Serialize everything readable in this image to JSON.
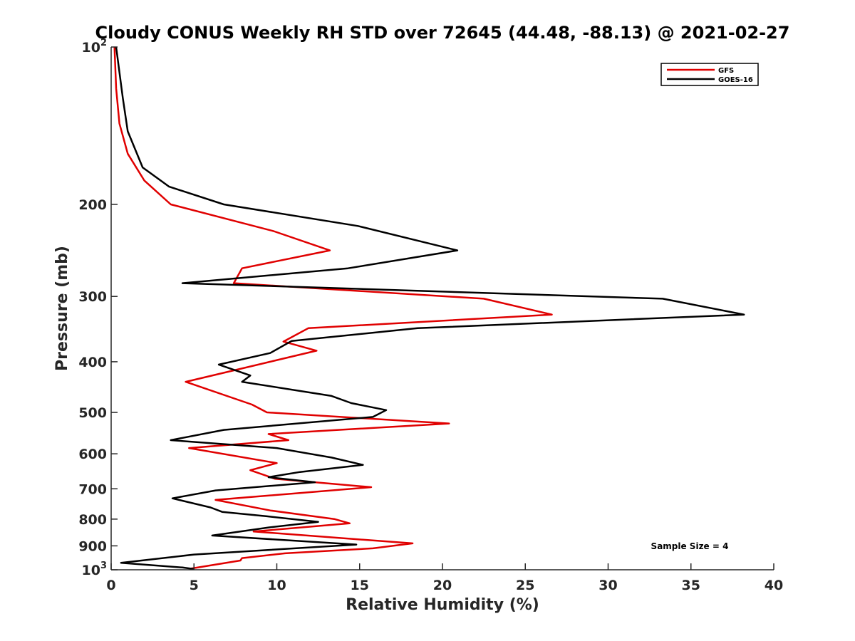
{
  "chart_data": {
    "type": "line",
    "title": "Cloudy CONUS Weekly RH STD over 72645 (44.48, -88.13) @ 2021-02-27",
    "xlabel": "Relative Humidity (%)",
    "ylabel": "Pressure (mb)",
    "xlim": [
      0,
      40
    ],
    "ylim": [
      100,
      1000
    ],
    "y_scale": "log",
    "y_reversed": true,
    "grid": false,
    "x_ticks": [
      "0",
      "5",
      "10",
      "15",
      "20",
      "25",
      "30",
      "35",
      "40"
    ],
    "y_ticks": [
      {
        "value": 100,
        "label": "10",
        "sup": "2"
      },
      {
        "value": 200,
        "label": "200",
        "sup": ""
      },
      {
        "value": 300,
        "label": "300",
        "sup": ""
      },
      {
        "value": 400,
        "label": "400",
        "sup": ""
      },
      {
        "value": 500,
        "label": "500",
        "sup": ""
      },
      {
        "value": 600,
        "label": "600",
        "sup": ""
      },
      {
        "value": 700,
        "label": "700",
        "sup": ""
      },
      {
        "value": 800,
        "label": "800",
        "sup": ""
      },
      {
        "value": 900,
        "label": "900",
        "sup": ""
      },
      {
        "value": 1000,
        "label": "10",
        "sup": "3"
      }
    ],
    "legend_position": "top-right",
    "series": [
      {
        "name": "GFS",
        "color": "#e00000",
        "x": [
          0.2,
          0.3,
          0.5,
          1.0,
          2.0,
          3.6,
          9.8,
          13.2,
          7.9,
          7.4,
          22.5,
          26.6,
          11.9,
          10.4,
          12.4,
          9.6,
          4.5,
          8.5,
          9.4,
          20.4,
          9.5,
          10.7,
          4.7,
          10.0,
          8.4,
          9.9,
          15.7,
          6.3,
          9.6,
          13.5,
          14.4,
          8.6,
          12.9,
          18.2,
          15.8,
          10.5,
          7.9,
          7.8,
          4.8
        ],
        "y": [
          100,
          120,
          140,
          160,
          180,
          200,
          225,
          245,
          265,
          283,
          303,
          325,
          345,
          366,
          381,
          400,
          437,
          483,
          500,
          525,
          550,
          565,
          585,
          625,
          645,
          670,
          695,
          735,
          770,
          800,
          815,
          845,
          865,
          890,
          910,
          930,
          950,
          960,
          995
        ]
      },
      {
        "name": "GOES-16",
        "color": "#000000",
        "x": [
          0.3,
          0.7,
          1.0,
          1.9,
          3.5,
          6.8,
          14.9,
          20.9,
          14.3,
          4.3,
          33.3,
          38.2,
          18.5,
          10.9,
          9.6,
          6.5,
          8.4,
          7.9,
          13.3,
          14.5,
          16.6,
          15.8,
          6.8,
          3.6,
          10.0,
          13.3,
          15.2,
          11.4,
          9.5,
          12.3,
          6.3,
          3.7,
          6.0,
          6.7,
          9.4,
          12.5,
          9.5,
          6.1,
          14.8,
          5.0,
          0.6,
          4.3,
          5.0
        ],
        "y": [
          100,
          125,
          145,
          170,
          185,
          200,
          220,
          245,
          265,
          283,
          303,
          325,
          345,
          365,
          385,
          405,
          425,
          437,
          465,
          480,
          495,
          510,
          540,
          565,
          585,
          610,
          630,
          650,
          665,
          680,
          705,
          730,
          760,
          775,
          790,
          810,
          830,
          860,
          895,
          935,
          970,
          990,
          997
        ]
      }
    ],
    "annotation": "Sample Size = 4"
  }
}
